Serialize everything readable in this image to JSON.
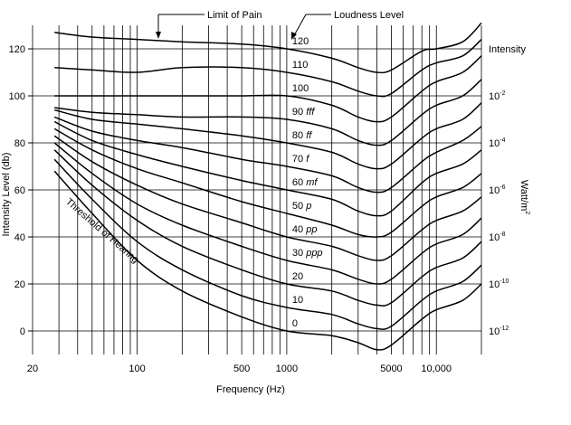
{
  "chart_data": {
    "type": "line",
    "xlabel": "Frequency (Hz)",
    "ylabel": "Intensity Level (db)",
    "y2label": "Watt/m",
    "y2label_sup": "2",
    "y2title": "Intensity",
    "x_scale": "log",
    "xlim": [
      20,
      20000
    ],
    "ylim": [
      -10,
      130
    ],
    "grid": true,
    "x_tick_labels": [
      {
        "value": 20,
        "label": "20"
      },
      {
        "value": 100,
        "label": "100"
      },
      {
        "value": 500,
        "label": "500"
      },
      {
        "value": 1000,
        "label": "1000"
      },
      {
        "value": 5000,
        "label": "5000"
      },
      {
        "value": 10000,
        "label": "10,000"
      }
    ],
    "y_ticks": [
      0,
      20,
      40,
      60,
      80,
      100,
      120
    ],
    "y2_ticks": [
      {
        "db": 100,
        "base": "10",
        "exp": "-2"
      },
      {
        "db": 80,
        "base": "10",
        "exp": "-4"
      },
      {
        "db": 60,
        "base": "10",
        "exp": "-6"
      },
      {
        "db": 40,
        "base": "10",
        "exp": "-8"
      },
      {
        "db": 20,
        "base": "10",
        "exp": "-10"
      },
      {
        "db": 0,
        "base": "10",
        "exp": "-12"
      }
    ],
    "annotations": [
      {
        "text": "Limit of Pain"
      },
      {
        "text": "Loudness Level"
      },
      {
        "text": "Threshold of Hearing"
      }
    ],
    "series": [
      {
        "label": "0",
        "points": [
          [
            28,
            68
          ],
          [
            50,
            50
          ],
          [
            100,
            30
          ],
          [
            200,
            17
          ],
          [
            500,
            6
          ],
          [
            1000,
            0
          ],
          [
            2000,
            -2
          ],
          [
            3000,
            -5
          ],
          [
            4000,
            -8
          ],
          [
            5000,
            -6
          ],
          [
            8000,
            5
          ],
          [
            10000,
            9
          ],
          [
            15000,
            13
          ],
          [
            20000,
            20
          ]
        ]
      },
      {
        "label": "10",
        "points": [
          [
            28,
            73
          ],
          [
            50,
            56
          ],
          [
            100,
            38
          ],
          [
            200,
            26
          ],
          [
            500,
            15
          ],
          [
            1000,
            10
          ],
          [
            2000,
            7
          ],
          [
            3000,
            3
          ],
          [
            4000,
            1
          ],
          [
            5000,
            2
          ],
          [
            8000,
            13
          ],
          [
            10000,
            17
          ],
          [
            15000,
            21
          ],
          [
            20000,
            28
          ]
        ]
      },
      {
        "label": "20",
        "points": [
          [
            28,
            77
          ],
          [
            50,
            62
          ],
          [
            100,
            47
          ],
          [
            200,
            36
          ],
          [
            500,
            26
          ],
          [
            1000,
            20
          ],
          [
            2000,
            17
          ],
          [
            3000,
            13
          ],
          [
            4000,
            11
          ],
          [
            5000,
            12
          ],
          [
            8000,
            23
          ],
          [
            10000,
            27
          ],
          [
            15000,
            31
          ],
          [
            20000,
            38
          ]
        ]
      },
      {
        "label": "30 ppp",
        "points": [
          [
            28,
            80
          ],
          [
            50,
            67
          ],
          [
            100,
            54
          ],
          [
            200,
            45
          ],
          [
            500,
            36
          ],
          [
            1000,
            30
          ],
          [
            2000,
            26
          ],
          [
            3000,
            22
          ],
          [
            4000,
            20
          ],
          [
            5000,
            22
          ],
          [
            8000,
            33
          ],
          [
            10000,
            37
          ],
          [
            15000,
            41
          ],
          [
            20000,
            48
          ]
        ]
      },
      {
        "label": "40 pp",
        "points": [
          [
            28,
            83
          ],
          [
            50,
            72
          ],
          [
            100,
            62
          ],
          [
            200,
            54
          ],
          [
            500,
            46
          ],
          [
            1000,
            40
          ],
          [
            2000,
            36
          ],
          [
            3000,
            32
          ],
          [
            4000,
            30
          ],
          [
            5000,
            32
          ],
          [
            8000,
            43
          ],
          [
            10000,
            47
          ],
          [
            15000,
            51
          ],
          [
            20000,
            57
          ]
        ]
      },
      {
        "label": "50 p",
        "points": [
          [
            28,
            86
          ],
          [
            50,
            77
          ],
          [
            100,
            69
          ],
          [
            200,
            63
          ],
          [
            500,
            55
          ],
          [
            1000,
            50
          ],
          [
            2000,
            45
          ],
          [
            3000,
            41
          ],
          [
            4000,
            40
          ],
          [
            5000,
            42
          ],
          [
            8000,
            53
          ],
          [
            10000,
            57
          ],
          [
            15000,
            61
          ],
          [
            20000,
            67
          ]
        ]
      },
      {
        "label": "60 mf",
        "points": [
          [
            28,
            89
          ],
          [
            50,
            81
          ],
          [
            100,
            75
          ],
          [
            200,
            70
          ],
          [
            500,
            64
          ],
          [
            1000,
            60
          ],
          [
            2000,
            56
          ],
          [
            3000,
            51
          ],
          [
            4000,
            49
          ],
          [
            5000,
            51
          ],
          [
            8000,
            63
          ],
          [
            10000,
            67
          ],
          [
            15000,
            71
          ],
          [
            20000,
            77
          ]
        ]
      },
      {
        "label": "70 f",
        "points": [
          [
            28,
            91
          ],
          [
            50,
            85
          ],
          [
            100,
            81
          ],
          [
            200,
            78
          ],
          [
            500,
            73
          ],
          [
            1000,
            70
          ],
          [
            2000,
            66
          ],
          [
            3000,
            61
          ],
          [
            4000,
            59
          ],
          [
            5000,
            61
          ],
          [
            8000,
            72
          ],
          [
            10000,
            76
          ],
          [
            15000,
            81
          ],
          [
            20000,
            87
          ]
        ]
      },
      {
        "label": "80 ff",
        "points": [
          [
            28,
            94
          ],
          [
            50,
            90
          ],
          [
            100,
            88
          ],
          [
            200,
            86
          ],
          [
            500,
            83
          ],
          [
            1000,
            80
          ],
          [
            2000,
            76
          ],
          [
            3000,
            71
          ],
          [
            4000,
            69
          ],
          [
            5000,
            71
          ],
          [
            8000,
            82
          ],
          [
            10000,
            86
          ],
          [
            15000,
            90
          ],
          [
            20000,
            97
          ]
        ]
      },
      {
        "label": "90 fff",
        "points": [
          [
            28,
            95
          ],
          [
            50,
            93
          ],
          [
            100,
            92
          ],
          [
            200,
            91
          ],
          [
            500,
            91
          ],
          [
            1000,
            90
          ],
          [
            2000,
            86
          ],
          [
            3000,
            81
          ],
          [
            4000,
            79
          ],
          [
            5000,
            81
          ],
          [
            8000,
            92
          ],
          [
            10000,
            96
          ],
          [
            15000,
            100
          ],
          [
            20000,
            107
          ]
        ]
      },
      {
        "label": "100",
        "points": [
          [
            28,
            100
          ],
          [
            50,
            100
          ],
          [
            100,
            100
          ],
          [
            200,
            100
          ],
          [
            500,
            100
          ],
          [
            1000,
            100
          ],
          [
            2000,
            96
          ],
          [
            3000,
            91
          ],
          [
            4000,
            89
          ],
          [
            5000,
            91
          ],
          [
            8000,
            102
          ],
          [
            10000,
            106
          ],
          [
            15000,
            110
          ],
          [
            20000,
            117
          ]
        ]
      },
      {
        "label": "110",
        "points": [
          [
            28,
            112
          ],
          [
            50,
            111
          ],
          [
            100,
            110
          ],
          [
            200,
            112
          ],
          [
            500,
            112
          ],
          [
            1000,
            110
          ],
          [
            2000,
            106
          ],
          [
            3000,
            102
          ],
          [
            4000,
            100
          ],
          [
            5000,
            101
          ],
          [
            8000,
            111
          ],
          [
            10000,
            114
          ],
          [
            15000,
            117
          ],
          [
            20000,
            124
          ]
        ]
      },
      {
        "label": "120",
        "points": [
          [
            28,
            127
          ],
          [
            50,
            125
          ],
          [
            100,
            124
          ],
          [
            200,
            123
          ],
          [
            500,
            122
          ],
          [
            1000,
            120
          ],
          [
            2000,
            116
          ],
          [
            3000,
            112
          ],
          [
            4000,
            110
          ],
          [
            5000,
            111
          ],
          [
            8000,
            119
          ],
          [
            10000,
            120
          ],
          [
            15000,
            123
          ],
          [
            20000,
            131
          ]
        ]
      }
    ]
  }
}
